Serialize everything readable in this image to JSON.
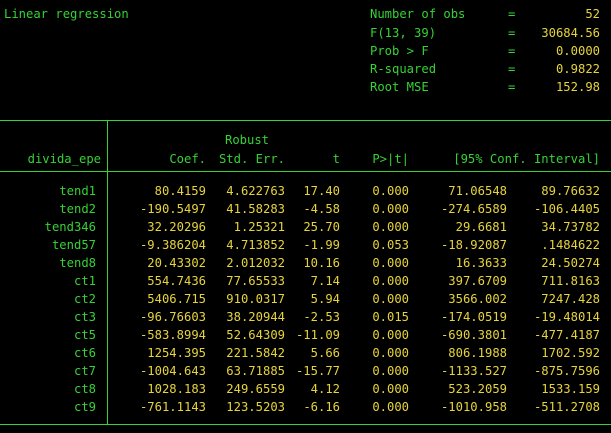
{
  "header": {
    "title": "Linear regression",
    "stats": [
      {
        "label": "Number of obs",
        "eq": "=",
        "value": "52"
      },
      {
        "label": "F(13, 39)",
        "eq": "=",
        "value": "30684.56"
      },
      {
        "label": "Prob > F",
        "eq": "=",
        "value": "0.0000"
      },
      {
        "label": "R-squared",
        "eq": "=",
        "value": "0.9822"
      },
      {
        "label": "Root MSE",
        "eq": "=",
        "value": "152.98"
      }
    ]
  },
  "table": {
    "depvar": "divida_epe",
    "robust_label": "Robust",
    "columns": {
      "coef": "Coef.",
      "se": "Std. Err.",
      "t": "t",
      "p": "P>|t|",
      "ci": "[95% Conf. Interval]"
    },
    "rows": [
      {
        "name": "tend1",
        "coef": "80.4159",
        "se": "4.622763",
        "t": "17.40",
        "p": "0.000",
        "lo": "71.06548",
        "hi": "89.76632"
      },
      {
        "name": "tend2",
        "coef": "-190.5497",
        "se": "41.58283",
        "t": "-4.58",
        "p": "0.000",
        "lo": "-274.6589",
        "hi": "-106.4405"
      },
      {
        "name": "tend346",
        "coef": "32.20296",
        "se": "1.25321",
        "t": "25.70",
        "p": "0.000",
        "lo": "29.6681",
        "hi": "34.73782"
      },
      {
        "name": "tend57",
        "coef": "-9.386204",
        "se": "4.713852",
        "t": "-1.99",
        "p": "0.053",
        "lo": "-18.92087",
        "hi": ".1484622"
      },
      {
        "name": "tend8",
        "coef": "20.43302",
        "se": "2.012032",
        "t": "10.16",
        "p": "0.000",
        "lo": "16.3633",
        "hi": "24.50274"
      },
      {
        "name": "ct1",
        "coef": "554.7436",
        "se": "77.65533",
        "t": "7.14",
        "p": "0.000",
        "lo": "397.6709",
        "hi": "711.8163"
      },
      {
        "name": "ct2",
        "coef": "5406.715",
        "se": "910.0317",
        "t": "5.94",
        "p": "0.000",
        "lo": "3566.002",
        "hi": "7247.428"
      },
      {
        "name": "ct3",
        "coef": "-96.76603",
        "se": "38.20944",
        "t": "-2.53",
        "p": "0.015",
        "lo": "-174.0519",
        "hi": "-19.48014"
      },
      {
        "name": "ct5",
        "coef": "-583.8994",
        "se": "52.64309",
        "t": "-11.09",
        "p": "0.000",
        "lo": "-690.3801",
        "hi": "-477.4187"
      },
      {
        "name": "ct6",
        "coef": "1254.395",
        "se": "221.5842",
        "t": "5.66",
        "p": "0.000",
        "lo": "806.1988",
        "hi": "1702.592"
      },
      {
        "name": "ct7",
        "coef": "-1004.643",
        "se": "63.71885",
        "t": "-15.77",
        "p": "0.000",
        "lo": "-1133.527",
        "hi": "-875.7596"
      },
      {
        "name": "ct8",
        "coef": "1028.183",
        "se": "249.6559",
        "t": "4.12",
        "p": "0.000",
        "lo": "523.2059",
        "hi": "1533.159"
      },
      {
        "name": "ct9",
        "coef": "-761.1143",
        "se": "123.5203",
        "t": "-6.16",
        "p": "0.000",
        "lo": "-1010.958",
        "hi": "-511.2708"
      }
    ]
  },
  "colors": {
    "background": "#000000",
    "text_green": "#36d236",
    "text_yellow": "#e6d43c"
  }
}
